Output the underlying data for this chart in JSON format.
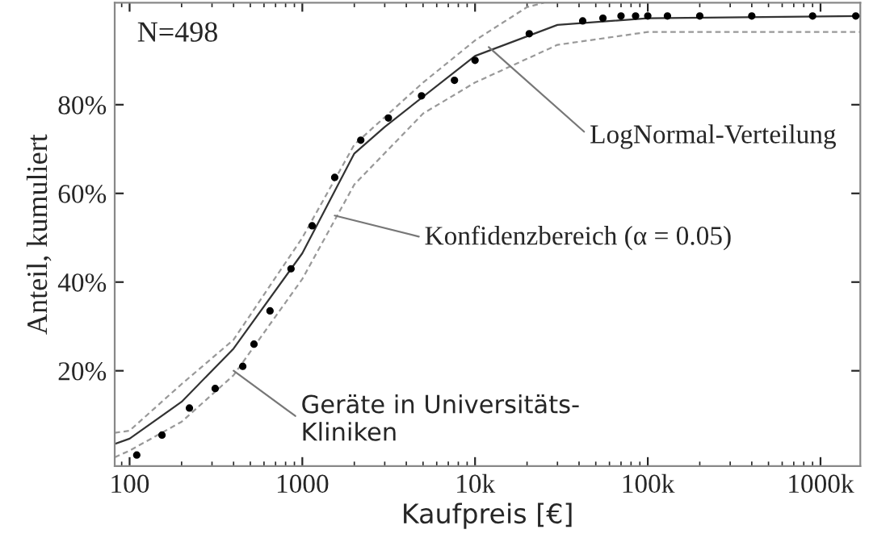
{
  "chart_data": {
    "type": "line",
    "xlabel": "Kaufpreis [€]",
    "ylabel": "Anteil, kumuliert",
    "log": "x",
    "xlim": [
      82,
      1700000
    ],
    "xticks": [
      {
        "value": 100,
        "label": "100"
      },
      {
        "value": 1000,
        "label": "1000"
      },
      {
        "value": 10000,
        "label": "10k"
      },
      {
        "value": 100000,
        "label": "100k"
      },
      {
        "value": 1000000,
        "label": "1000k"
      }
    ],
    "ylim": [
      -1.5,
      103
    ],
    "yticks": [
      {
        "value": 20,
        "label": "20%"
      },
      {
        "value": 40,
        "label": "40%"
      },
      {
        "value": 60,
        "label": "60%"
      },
      {
        "value": 80,
        "label": "80%"
      }
    ],
    "grid": false,
    "legend": false,
    "series": [
      {
        "type": "scatter",
        "marker": "circle",
        "color": "#000000",
        "x": [
          110,
          154,
          222,
          313,
          452,
          525,
          650,
          860,
          1140,
          1540,
          2180,
          3150,
          4900,
          7600,
          10000,
          20600,
          42000,
          55000,
          70000,
          85000,
          100000,
          130000,
          200000,
          400000,
          900000,
          1600000
        ],
        "values": [
          1,
          5.5,
          11.6,
          16,
          21,
          26,
          33.5,
          43,
          52.7,
          63.6,
          72,
          77,
          82,
          85.5,
          90,
          96,
          98.9,
          99.5,
          100,
          100,
          100,
          100,
          100,
          100,
          100,
          100
        ]
      },
      {
        "line_style": "solid",
        "color": "#333333",
        "x": [
          82,
          100,
          200,
          400,
          1000,
          2000,
          3000,
          10000,
          30000,
          100000,
          1700000
        ],
        "values": [
          3.5,
          4.7,
          13,
          25,
          46.5,
          69,
          75,
          91,
          98,
          99.5,
          100
        ]
      },
      {
        "line_style": "dashed",
        "color": "#999999",
        "x": [
          82,
          100,
          200,
          400,
          1000,
          2000,
          5000,
          10000,
          20000,
          25000
        ],
        "values": [
          6,
          6.5,
          17,
          27,
          50,
          71,
          85,
          94.5,
          102,
          103
        ]
      },
      {
        "line_style": "dashed",
        "color": "#999999",
        "x": [
          82,
          100,
          200,
          400,
          1000,
          2000,
          5000,
          10000,
          30000,
          100000,
          1700000
        ],
        "values": [
          0.5,
          2,
          8.5,
          19,
          40.7,
          62,
          78,
          85,
          93.5,
          96.4,
          96.4
        ]
      }
    ],
    "annotations": [
      {
        "text": "N=498"
      },
      {
        "text": "LogNormal-Verteilung",
        "x": 12000,
        "y": 93
      },
      {
        "text": "Konfidenzbereich (α = 0.05)",
        "x": 1540,
        "y": 55
      },
      {
        "text": "Geräte in Universitäts-\nKliniken",
        "x": 400,
        "y": 20
      }
    ]
  }
}
